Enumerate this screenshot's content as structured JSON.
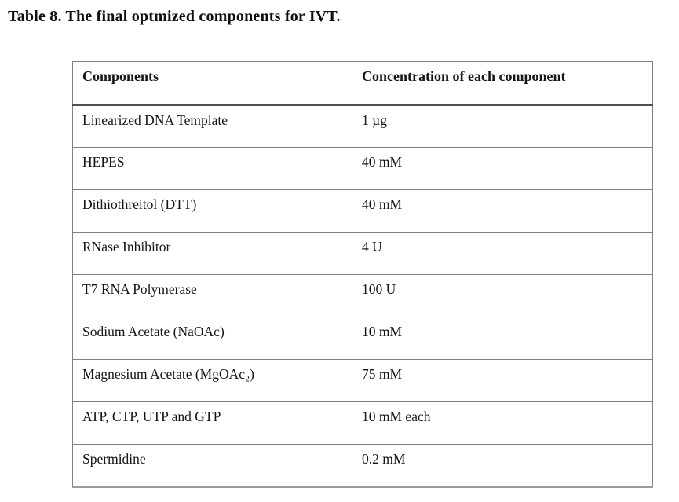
{
  "title": "Table 8. The final optmized components for IVT.",
  "table": {
    "headers": [
      "Components",
      "Concentration of each component"
    ],
    "rows": [
      {
        "component": "Linearized DNA Template",
        "concentration": "1 µg"
      },
      {
        "component": "HEPES",
        "concentration": "40 mM"
      },
      {
        "component": "Dithiothreitol (DTT)",
        "concentration": "40 mM"
      },
      {
        "component": "RNase Inhibitor",
        "concentration": "4 U"
      },
      {
        "component": "T7 RNA Polymerase",
        "concentration": "100 U"
      },
      {
        "component": "Sodium Acetate (NaOAc)",
        "concentration": "10 mM"
      },
      {
        "component": "Magnesium Acetate (MgOAc₂)",
        "concentration": "75 mM"
      },
      {
        "component": "ATP, CTP, UTP and GTP",
        "concentration": "10 mM each"
      },
      {
        "component": "Spermidine",
        "concentration": "0.2 mM"
      }
    ]
  },
  "colors": {
    "background": "#ffffff",
    "text": "#151515",
    "cell_border": "#7f7f7f",
    "header_separator": "#4f4f4f",
    "bottom_border": "#9c9c9c"
  }
}
